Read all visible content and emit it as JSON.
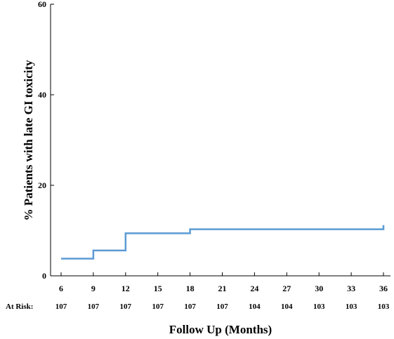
{
  "chart_data": {
    "type": "line",
    "title": "",
    "xlabel": "Follow Up (Months)",
    "ylabel": "% Patients with late GI toxicity",
    "xlim": [
      6,
      36
    ],
    "ylim": [
      0,
      60
    ],
    "x_ticks": [
      6,
      9,
      12,
      15,
      18,
      21,
      24,
      27,
      30,
      33,
      36
    ],
    "y_ticks": [
      0,
      20,
      40,
      60
    ],
    "grid": false,
    "legend": "none",
    "series": [
      {
        "name": "",
        "color": "#5b9bd5",
        "step": true,
        "points": [
          {
            "x": 6,
            "y": 3.8
          },
          {
            "x": 9,
            "y": 3.8
          },
          {
            "x": 9,
            "y": 5.6
          },
          {
            "x": 12,
            "y": 5.6
          },
          {
            "x": 12,
            "y": 9.4
          },
          {
            "x": 18,
            "y": 9.4
          },
          {
            "x": 18,
            "y": 10.3
          },
          {
            "x": 36,
            "y": 10.3
          },
          {
            "x": 36,
            "y": 11.2
          }
        ]
      }
    ],
    "at_risk": {
      "label": "At Risk:",
      "values": [
        107,
        107,
        107,
        107,
        107,
        107,
        104,
        104,
        103,
        103,
        103
      ]
    }
  }
}
